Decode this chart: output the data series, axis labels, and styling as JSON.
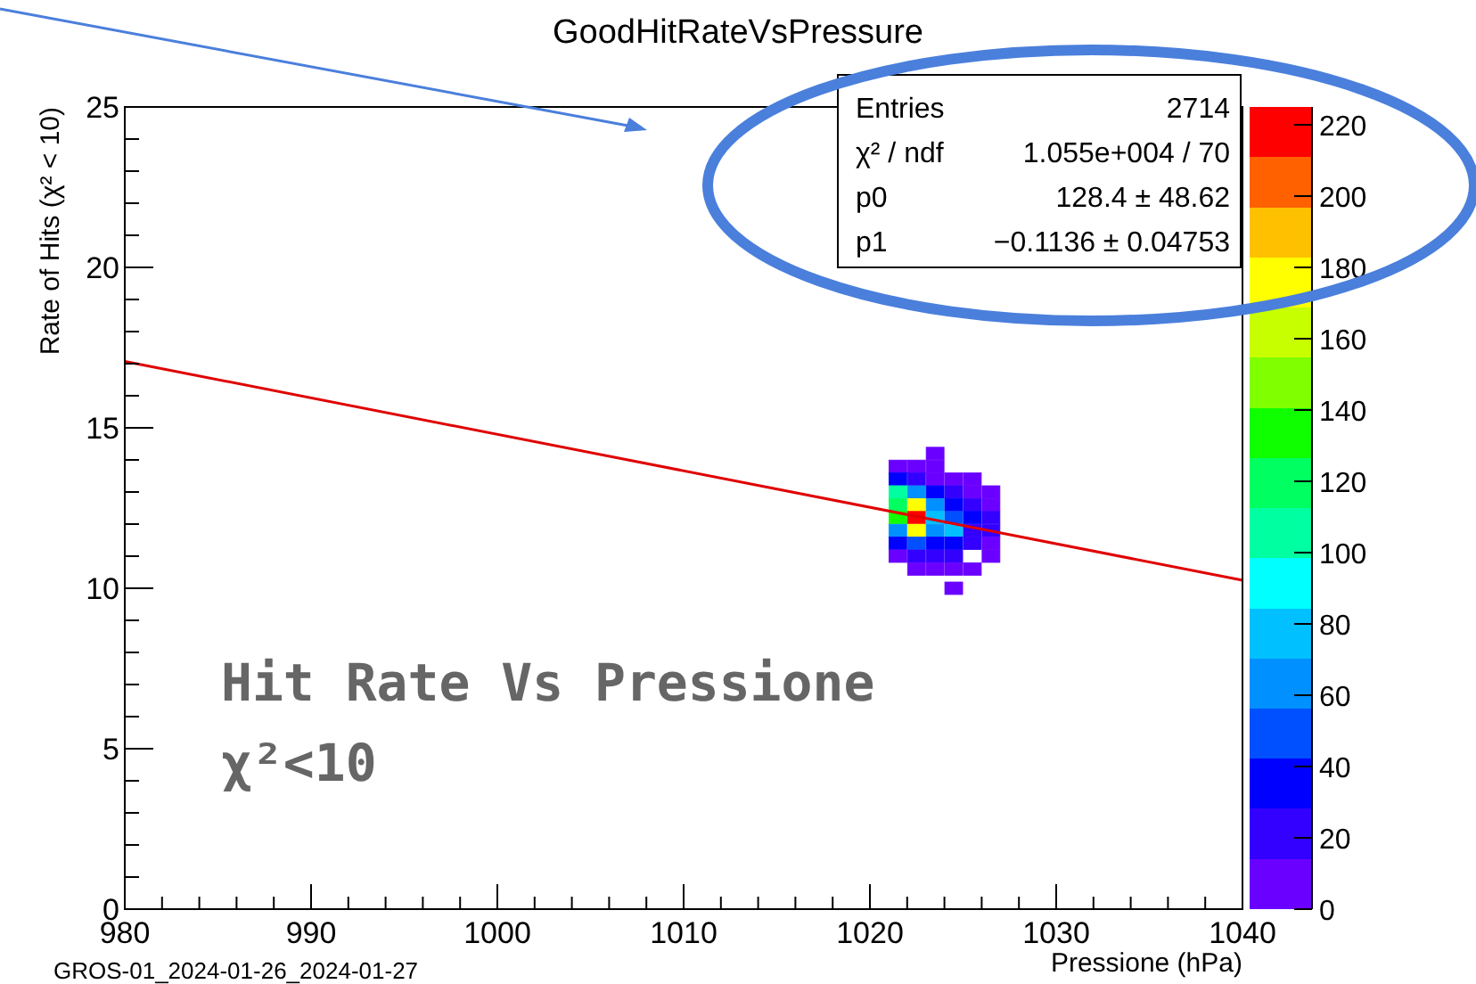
{
  "chart_data": {
    "type": "scatter",
    "title": "GoodHitRateVsPressure",
    "xlabel": "Pressione (hPa)",
    "ylabel": "Rate of Hits (χ² < 10)",
    "xlim": [
      980,
      1040
    ],
    "ylim": [
      0,
      25
    ],
    "clim": [
      0,
      225
    ],
    "xticks": [
      980,
      {
        "value": 982,
        "label": null
      },
      {
        "value": 984,
        "label": null
      },
      {
        "value": 986,
        "label": null
      },
      {
        "value": 988,
        "label": null
      },
      990,
      {
        "value": 992,
        "label": null
      },
      {
        "value": 994,
        "label": null
      },
      {
        "value": 996,
        "label": null
      },
      {
        "value": 998,
        "label": null
      },
      1000,
      {
        "value": 1002,
        "label": null
      },
      {
        "value": 1004,
        "label": null
      },
      {
        "value": 1006,
        "label": null
      },
      {
        "value": 1008,
        "label": null
      },
      1010,
      {
        "value": 1012,
        "label": null
      },
      {
        "value": 1014,
        "label": null
      },
      {
        "value": 1016,
        "label": null
      },
      {
        "value": 1018,
        "label": null
      },
      1020,
      {
        "value": 1022,
        "label": null
      },
      {
        "value": 1024,
        "label": null
      },
      {
        "value": 1026,
        "label": null
      },
      {
        "value": 1028,
        "label": null
      },
      1030,
      {
        "value": 1032,
        "label": null
      },
      {
        "value": 1034,
        "label": null
      },
      {
        "value": 1036,
        "label": null
      },
      {
        "value": 1038,
        "label": null
      },
      1040
    ],
    "yticks": [
      0,
      {
        "value": 1,
        "label": null
      },
      {
        "value": 2,
        "label": null
      },
      {
        "value": 3,
        "label": null
      },
      {
        "value": 4,
        "label": null
      },
      5,
      {
        "value": 6,
        "label": null
      },
      {
        "value": 7,
        "label": null
      },
      {
        "value": 8,
        "label": null
      },
      {
        "value": 9,
        "label": null
      },
      10,
      {
        "value": 11,
        "label": null
      },
      {
        "value": 12,
        "label": null
      },
      {
        "value": 13,
        "label": null
      },
      {
        "value": 14,
        "label": null
      },
      15,
      {
        "value": 16,
        "label": null
      },
      {
        "value": 17,
        "label": null
      },
      {
        "value": 18,
        "label": null
      },
      {
        "value": 19,
        "label": null
      },
      20,
      {
        "value": 21,
        "label": null
      },
      {
        "value": 22,
        "label": null
      },
      {
        "value": 23,
        "label": null
      },
      {
        "value": 24,
        "label": null
      },
      25
    ],
    "cticks": [
      0,
      20,
      40,
      60,
      80,
      100,
      120,
      140,
      160,
      180,
      200,
      220
    ],
    "grid": false,
    "series": [
      {
        "marker": "square",
        "colors": [
          "#6a00ff",
          "#6a00ff",
          "#6a00ff",
          "#6a00ff",
          "#0000ff",
          "#3300ff",
          "#6a00ff",
          "#6a00ff",
          "#6a00ff",
          "#00ffa0",
          "#0090ff",
          "#0000ff",
          "#3300ff",
          "#6a00ff",
          "#6a00ff",
          "#00ff60",
          "#ffff00",
          "#0090ff",
          "#0000ff",
          "#3300ff",
          "#6a00ff",
          "#10ff00",
          "#ff0000",
          "#00c0ff",
          "#0050ff",
          "#0000ff",
          "#3300ff",
          "#0090ff",
          "#ffff00",
          "#0090ff",
          "#00c0ff",
          "#3300ff",
          "#3300ff",
          "#0000ff",
          "#0050ff",
          "#0000ff",
          "#0000ff",
          "#3300ff",
          "#6a00ff",
          "#6a00ff",
          "#3300ff",
          "#3300ff",
          "#3300ff",
          "#6a00ff",
          "#6a00ff",
          "#6a00ff",
          "#6a00ff",
          "#6a00ff",
          "#6a00ff"
        ],
        "x": [
          1023.5,
          1021.5,
          1022.5,
          1023.5,
          1021.5,
          1022.5,
          1023.5,
          1024.5,
          1025.5,
          1021.5,
          1022.5,
          1023.5,
          1024.5,
          1025.5,
          1026.5,
          1021.5,
          1022.5,
          1023.5,
          1024.5,
          1025.5,
          1026.5,
          1021.5,
          1022.5,
          1023.5,
          1024.5,
          1025.5,
          1026.5,
          1021.5,
          1022.5,
          1023.5,
          1024.5,
          1025.5,
          1026.5,
          1021.5,
          1022.5,
          1023.5,
          1024.5,
          1025.5,
          1026.5,
          1021.5,
          1022.5,
          1023.5,
          1024.5,
          1026.5,
          1022.5,
          1023.5,
          1024.5,
          1025.5,
          1024.5
        ],
        "values": [
          14.2,
          13.8,
          13.8,
          13.8,
          13.4,
          13.4,
          13.4,
          13.4,
          13.4,
          13.0,
          13.0,
          13.0,
          13.0,
          13.0,
          13.0,
          12.6,
          12.6,
          12.6,
          12.6,
          12.6,
          12.6,
          12.2,
          12.2,
          12.2,
          12.2,
          12.2,
          12.2,
          11.8,
          11.8,
          11.8,
          11.8,
          11.8,
          11.8,
          11.4,
          11.4,
          11.4,
          11.4,
          11.4,
          11.4,
          11.0,
          11.0,
          11.0,
          11.0,
          11.0,
          10.6,
          10.6,
          10.6,
          10.6,
          10.0
        ],
        "cvalues": [
          5,
          10,
          10,
          5,
          30,
          15,
          10,
          10,
          5,
          110,
          60,
          30,
          20,
          10,
          10,
          120,
          170,
          60,
          40,
          20,
          10,
          130,
          220,
          80,
          50,
          30,
          15,
          60,
          170,
          70,
          75,
          25,
          15,
          30,
          50,
          40,
          30,
          20,
          10,
          10,
          20,
          15,
          15,
          10,
          5,
          5,
          5,
          5,
          5
        ]
      },
      {
        "type": "line",
        "color": "#e00000",
        "x": [
          980,
          1040
        ],
        "values": [
          17.07,
          10.25
        ]
      }
    ],
    "annotations": [
      "Entries",
      "2714",
      "χ² / ndf",
      "1.055e+004 / 70",
      "p0",
      "128.4 ± 48.62",
      "p1",
      "−0.1136 ± 0.04753",
      "Hit Rate Vs Pressione",
      "χ²<10",
      "GROS-01_2024-01-26_2024-01-27"
    ]
  }
}
